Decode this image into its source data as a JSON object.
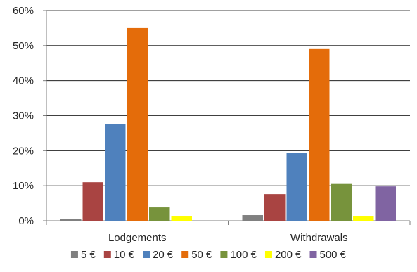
{
  "chart_data": {
    "type": "bar",
    "title": "",
    "xlabel": "",
    "ylabel": "",
    "ylim": [
      0,
      60
    ],
    "y_ticks": [
      "0%",
      "10%",
      "20%",
      "30%",
      "40%",
      "50%",
      "60%"
    ],
    "grid": true,
    "legend_position": "bottom",
    "categories": [
      "Lodgements",
      "Withdrawals"
    ],
    "series": [
      {
        "name": "5 €",
        "color": "#808080",
        "values": [
          0.6,
          1.6
        ]
      },
      {
        "name": "10 €",
        "color": "#a94442",
        "values": [
          11.0,
          7.6
        ]
      },
      {
        "name": "20 €",
        "color": "#4f81bd",
        "values": [
          27.5,
          19.4
        ]
      },
      {
        "name": "50 €",
        "color": "#e46c0a",
        "values": [
          55.0,
          49.0
        ]
      },
      {
        "name": "100 €",
        "color": "#77933c",
        "values": [
          3.8,
          10.5
        ]
      },
      {
        "name": "200 €",
        "color": "#ffff00",
        "values": [
          1.2,
          1.2
        ]
      },
      {
        "name": "500 €",
        "color": "#8064a2",
        "values": [
          0,
          9.8
        ]
      }
    ]
  }
}
